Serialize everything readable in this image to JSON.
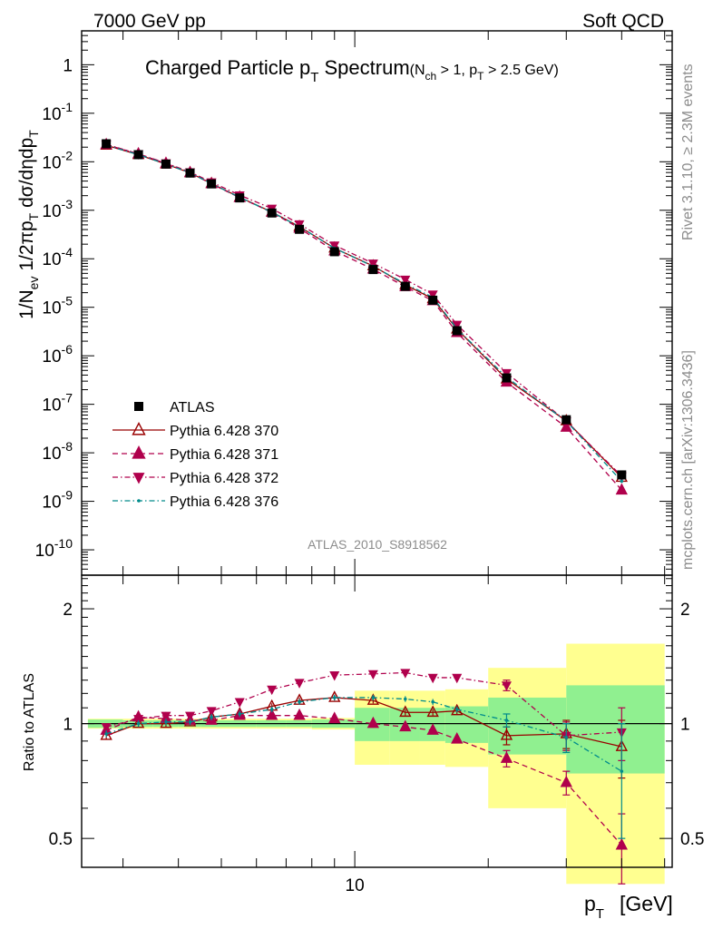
{
  "header": {
    "left": "7000 GeV pp",
    "right": "Soft QCD"
  },
  "side_labels": {
    "rivet": "Rivet 3.1.10, ≥ 2.3M events",
    "mcplots": "mcplots.cern.ch [arXiv:1306.3436]"
  },
  "analysis_tag": "ATLAS_2010_S8918562",
  "chart_data": [
    {
      "panel": "main",
      "type": "scatter",
      "title_main": "Charged Particle p",
      "title_main_sub": "T",
      "title_main_tail": " Spectrum",
      "title_cond": "(N",
      "title_cond_sub1": "ch",
      "title_cond_mid": " > 1, p",
      "title_cond_sub2": "T",
      "title_cond_tail": " > 2.5 GeV)",
      "ylabel": "1/N_ev 1/2πp_T dσ/dηdp_T",
      "yscale": "log",
      "xscale": "log",
      "xlim": [
        2.42,
        52
      ],
      "ylim": [
        3e-11,
        5
      ],
      "y_tick_labels": [
        "1",
        "10^-1",
        "10^-2",
        "10^-3",
        "10^-4",
        "10^-5",
        "10^-6",
        "10^-7",
        "10^-8",
        "10^-9",
        "10^-10"
      ],
      "x": [
        2.75,
        3.25,
        3.75,
        4.25,
        4.75,
        5.5,
        6.5,
        7.5,
        9.0,
        11.0,
        13.0,
        15.0,
        17.0,
        22.0,
        30.0,
        40.0
      ],
      "legend_position": "bottom-left",
      "series": [
        {
          "name": "ATLAS",
          "color": "#000000",
          "marker": "square",
          "values": [
            0.0235,
            0.014,
            0.00895,
            0.00585,
            0.0035,
            0.0018,
            0.00088,
            0.000405,
            0.00014,
            6e-05,
            2.7e-05,
            1.4e-05,
            3.3e-06,
            3.5e-07,
            4.8e-08,
            3.5e-09
          ]
        },
        {
          "name": "Pythia 6.428 370",
          "color": "#990000",
          "marker": "open-triangle-up",
          "line": "solid",
          "values": [
            0.0218,
            0.014,
            0.00895,
            0.0059,
            0.00355,
            0.00185,
            0.00092,
            0.00046,
            0.000165,
            7.1e-05,
            2.9e-05,
            1.5e-05,
            3.55e-06,
            3.3e-07,
            4.55e-08,
            3.1e-09
          ]
        },
        {
          "name": "Pythia 6.428 371",
          "color": "#b0004c",
          "marker": "triangle-up",
          "line": "dashed",
          "values": [
            0.0225,
            0.0145,
            0.00925,
            0.00595,
            0.0035,
            0.00182,
            0.000905,
            0.000425,
            0.000145,
            6.1e-05,
            2.65e-05,
            1.36e-05,
            3e-06,
            2.85e-07,
            3.35e-08,
            1.7e-09
          ]
        },
        {
          "name": "Pythia 6.428 372",
          "color": "#b0004c",
          "marker": "triangle-down",
          "line": "dash-dot",
          "values": [
            0.023,
            0.0145,
            0.0094,
            0.00615,
            0.0038,
            0.00205,
            0.00109,
            0.00052,
            0.00019,
            8.05e-05,
            3.75e-05,
            1.85e-05,
            4.4e-06,
            4.45e-07,
            4.5e-08,
            3.3e-09
          ]
        },
        {
          "name": "Pythia 6.428 376",
          "color": "#008b8b",
          "marker": "dot",
          "line": "dash-dot",
          "values": [
            0.022,
            0.014,
            0.009,
            0.0059,
            0.00355,
            0.00185,
            0.00091,
            0.00046,
            0.000165,
            7e-05,
            3.05e-05,
            1.6e-05,
            3.6e-06,
            3.6e-07,
            4.5e-08,
            2.6e-09
          ]
        }
      ]
    },
    {
      "panel": "ratio",
      "type": "line",
      "ylabel": "Ratio to ATLAS",
      "xlabel": "p_T [GeV]",
      "xlabel_main": "p",
      "xlabel_sub": "T",
      "xlabel_unit": "[GeV]",
      "xscale": "log",
      "yscale": "log",
      "xlim": [
        2.42,
        52
      ],
      "ylim": [
        0.42,
        2.45
      ],
      "y_ticks": [
        0.5,
        1,
        2
      ],
      "y_tick_labels": [
        "0.5",
        "1",
        "2"
      ],
      "x_tick_labels": [
        "10"
      ],
      "reference_line": 1,
      "x": [
        2.75,
        3.25,
        3.75,
        4.25,
        4.75,
        5.5,
        6.5,
        7.5,
        9.0,
        11.0,
        13.0,
        15.0,
        17.0,
        22.0,
        30.0,
        40.0
      ],
      "uncertainty_bands": [
        {
          "x0": 2.5,
          "x1": 3.0,
          "inner": 0.025,
          "outer": 0.03
        },
        {
          "x0": 3.0,
          "x1": 3.5,
          "inner": 0.02,
          "outer": 0.03
        },
        {
          "x0": 3.5,
          "x1": 4.0,
          "inner": 0.02,
          "outer": 0.03
        },
        {
          "x0": 4.0,
          "x1": 4.5,
          "inner": 0.02,
          "outer": 0.03
        },
        {
          "x0": 4.5,
          "x1": 5.0,
          "inner": 0.02,
          "outer": 0.03
        },
        {
          "x0": 5.0,
          "x1": 6.0,
          "inner": 0.02,
          "outer": 0.03
        },
        {
          "x0": 6.0,
          "x1": 7.0,
          "inner": 0.02,
          "outer": 0.03
        },
        {
          "x0": 7.0,
          "x1": 8.0,
          "inner": 0.02,
          "outer": 0.03
        },
        {
          "x0": 8.0,
          "x1": 10.0,
          "inner": 0.025,
          "outer": 0.035
        },
        {
          "x0": 10.0,
          "x1": 12.0,
          "inner": 0.1,
          "outer": 0.22
        },
        {
          "x0": 12.0,
          "x1": 14.0,
          "inner": 0.1,
          "outer": 0.22
        },
        {
          "x0": 14.0,
          "x1": 16.0,
          "inner": 0.1,
          "outer": 0.22
        },
        {
          "x0": 16.0,
          "x1": 20.0,
          "inner": 0.11,
          "outer": 0.23
        },
        {
          "x0": 20.0,
          "x1": 30.0,
          "inner": 0.17,
          "outer": 0.4
        },
        {
          "x0": 30.0,
          "x1": 50.0,
          "inner": 0.26,
          "outer": 0.62
        }
      ],
      "band_colors": {
        "inner": "#90f090",
        "outer": "#ffff90"
      },
      "series": [
        {
          "name": "Pythia 6.428 370",
          "color": "#990000",
          "marker": "open-triangle-up",
          "line": "solid",
          "values": [
            0.93,
            1.0,
            1.0,
            1.01,
            1.04,
            1.06,
            1.11,
            1.15,
            1.17,
            1.15,
            1.07,
            1.07,
            1.08,
            0.93,
            0.94,
            0.87
          ],
          "errors": [
            0.02,
            0.02,
            0.02,
            0.02,
            0.02,
            0.02,
            0.02,
            0.02,
            0.02,
            0.02,
            0.02,
            0.02,
            0.02,
            0.05,
            0.08,
            0.15
          ]
        },
        {
          "name": "Pythia 6.428 371",
          "color": "#b0004c",
          "marker": "triangle-up",
          "line": "dashed",
          "values": [
            0.96,
            1.04,
            1.03,
            1.02,
            1.02,
            1.05,
            1.05,
            1.05,
            1.03,
            1.0,
            0.98,
            0.96,
            0.91,
            0.81,
            0.7,
            0.48
          ],
          "errors": [
            0.02,
            0.02,
            0.02,
            0.02,
            0.02,
            0.02,
            0.02,
            0.02,
            0.02,
            0.02,
            0.02,
            0.02,
            0.02,
            0.04,
            0.05,
            0.1
          ]
        },
        {
          "name": "Pythia 6.428 372",
          "color": "#b0004c",
          "marker": "triangle-down",
          "line": "dash-dot",
          "values": [
            0.98,
            1.03,
            1.05,
            1.05,
            1.08,
            1.14,
            1.23,
            1.28,
            1.34,
            1.35,
            1.36,
            1.32,
            1.32,
            1.26,
            0.93,
            0.95
          ],
          "errors": [
            0.02,
            0.02,
            0.02,
            0.02,
            0.02,
            0.02,
            0.02,
            0.02,
            0.02,
            0.02,
            0.02,
            0.02,
            0.02,
            0.04,
            0.08,
            0.15
          ]
        },
        {
          "name": "Pythia 6.428 376",
          "color": "#008b8b",
          "marker": "dot",
          "line": "dash-dot",
          "values": [
            0.94,
            1.0,
            1.01,
            1.01,
            1.04,
            1.06,
            1.09,
            1.14,
            1.17,
            1.17,
            1.16,
            1.14,
            1.09,
            1.02,
            0.92,
            0.75
          ],
          "errors": [
            0.02,
            0.02,
            0.02,
            0.02,
            0.02,
            0.02,
            0.02,
            0.02,
            0.02,
            0.02,
            0.02,
            0.02,
            0.02,
            0.04,
            0.08,
            0.25
          ]
        }
      ]
    }
  ]
}
